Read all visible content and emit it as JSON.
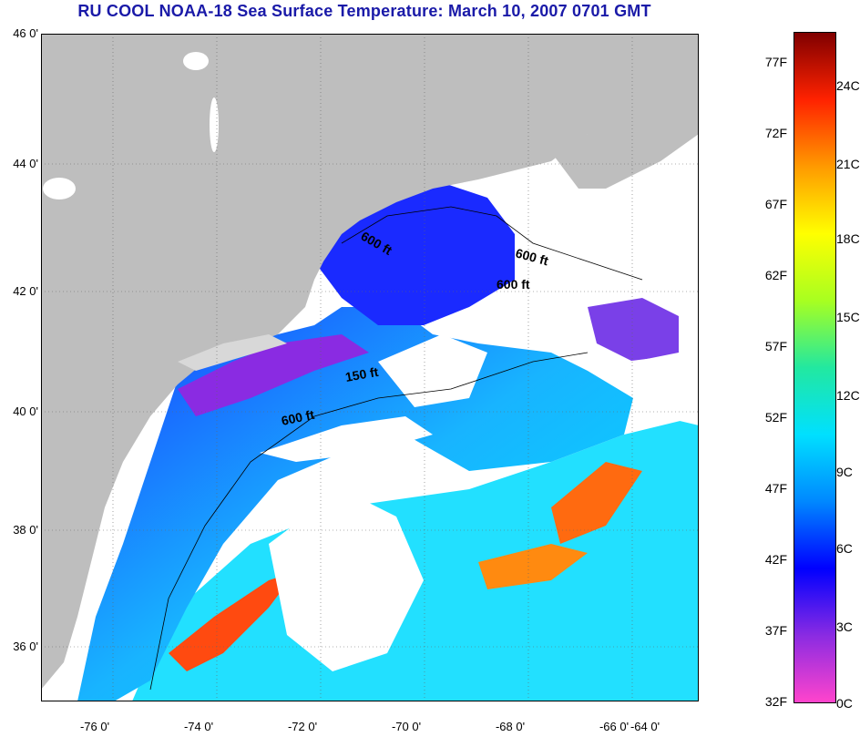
{
  "title": "RU COOL  NOAA-18  Sea Surface Temperature:  March 10, 2007 0701 GMT",
  "lat_labels": [
    "46 0'",
    "44 0'",
    "42 0'",
    "40 0'",
    "38 0'",
    "36 0'"
  ],
  "lon_labels": [
    "-76 0'",
    "-74 0'",
    "-72 0'",
    "-70 0'",
    "-68 0'",
    "-66 0'",
    "-64 0'"
  ],
  "isobath_labels": [
    "600 ft",
    "600 ft",
    "600 ft",
    "150 ft",
    "600 ft"
  ],
  "colorbar": {
    "fahrenheit_ticks": [
      "77F",
      "72F",
      "67F",
      "62F",
      "57F",
      "52F",
      "47F",
      "42F",
      "37F",
      "32F"
    ],
    "celsius_ticks": [
      "24C",
      "21C",
      "18C",
      "15C",
      "12C",
      "9C",
      "6C",
      "3C",
      "0C"
    ],
    "stops": [
      "#ff44cc",
      "#8a2be2",
      "#0000ff",
      "#0088ff",
      "#00e0ff",
      "#22e8a0",
      "#a8ff20",
      "#ffff00",
      "#ff9a00",
      "#ff2200",
      "#800000"
    ]
  },
  "colors": {
    "land": "#bebebe",
    "cloud": "#ffffff",
    "title": "#1a1aa8"
  }
}
